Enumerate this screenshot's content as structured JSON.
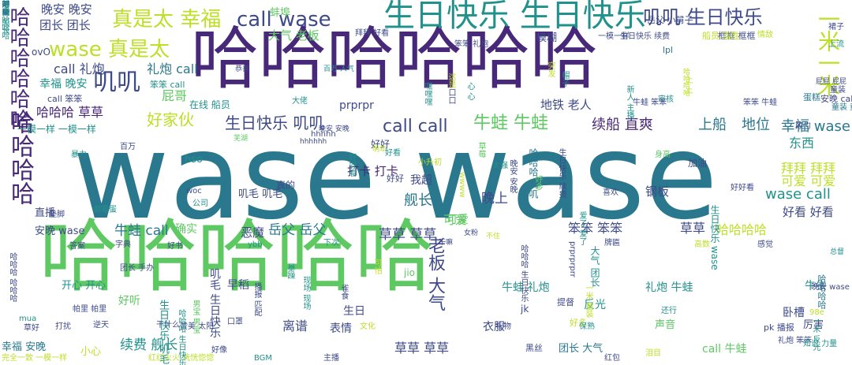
{
  "palette": {
    "purple": "#482878",
    "teal": "#2a788e",
    "green": "#5ec962",
    "yellow": "#bddf26",
    "blue": "#3e4a89",
    "bluegreen": "#21918c"
  },
  "words": [
    {
      "text": "wase wase",
      "color": "#2a788e"
    },
    {
      "text": "哈哈哈哈哈哈",
      "color": "#482878"
    },
    {
      "text": "哈哈哈哈哈",
      "color": "#5ec962"
    },
    {
      "text": "生日快乐 生日快乐",
      "color": "#21918c"
    },
    {
      "text": "哈哈哈哈哈哈",
      "color": "#482878"
    },
    {
      "text": "哈哈哈哈",
      "color": "#482878"
    },
    {
      "text": "一米一米",
      "color": "#bddf26"
    },
    {
      "text": "真是太 幸福",
      "color": "#bddf26"
    },
    {
      "text": "call wase",
      "color": "#3e4a89"
    },
    {
      "text": "叽叽 生日快乐",
      "color": "#3e4a89"
    },
    {
      "text": "wase 真是太",
      "color": "#bddf26"
    },
    {
      "text": "叽叽",
      "color": "#3e4a89"
    },
    {
      "text": "生日快乐 叽叽",
      "color": "#3e4a89"
    },
    {
      "text": "call call",
      "color": "#3e4a89"
    },
    {
      "text": "牛蛙 牛蛙",
      "color": "#5ec962"
    },
    {
      "text": "续船 直爽",
      "color": "#482878"
    },
    {
      "text": "上船",
      "color": "#2a788e"
    },
    {
      "text": "地位",
      "color": "#2a788e"
    },
    {
      "text": "幸福 wase",
      "color": "#2a788e"
    },
    {
      "text": "wase call",
      "color": "#21918c"
    },
    {
      "text": "好家伙",
      "color": "#bddf26"
    },
    {
      "text": "哈哈哈 草草",
      "color": "#482878"
    },
    {
      "text": "晚安 晚安",
      "color": "#3e4a89"
    },
    {
      "text": "团长 团长",
      "color": "#3e4a89"
    },
    {
      "text": "大气 老板",
      "color": "#5ec962"
    },
    {
      "text": "礼炮 call",
      "color": "#2a788e"
    },
    {
      "text": "call 礼炮",
      "color": "#3e4a89"
    },
    {
      "text": "幸福 晚安",
      "color": "#21918c"
    },
    {
      "text": "屁哥",
      "color": "#5ec962"
    },
    {
      "text": "在线 船员",
      "color": "#21918c"
    },
    {
      "text": "prprpr",
      "color": "#3e4a89"
    },
    {
      "text": "地铁 老人",
      "color": "#3e4a89"
    },
    {
      "text": "老板 大气",
      "color": "#3e4a89"
    },
    {
      "text": "草草 草草",
      "color": "#3e4a89"
    },
    {
      "text": "牛蛙 call",
      "color": "#2a788e"
    },
    {
      "text": "岳父 岳父",
      "color": "#2a788e"
    },
    {
      "text": "笨笨 笨笨",
      "color": "#3e4a89"
    },
    {
      "text": "草草",
      "color": "#3e4a89"
    },
    {
      "text": "哈哈哈哈",
      "color": "#bddf26"
    },
    {
      "text": "安晚 wase",
      "color": "#3e4a89"
    },
    {
      "text": "确实",
      "color": "#5ec962"
    },
    {
      "text": "恶魔",
      "color": "#3e4a89"
    },
    {
      "text": "可爱",
      "color": "#5ec962"
    },
    {
      "text": "晚上",
      "color": "#3e4a89"
    },
    {
      "text": "舰长",
      "color": "#2a788e"
    },
    {
      "text": "我超",
      "color": "#3e4a89"
    },
    {
      "text": "打卡 打卡",
      "color": "#482878"
    },
    {
      "text": "叽毛 叽毛",
      "color": "#3e4a89"
    },
    {
      "text": "hso",
      "color": "#21918c"
    },
    {
      "text": "东西",
      "color": "#21918c"
    },
    {
      "text": "拜拜 拜拜",
      "color": "#bddf26"
    },
    {
      "text": "可爱 可爱",
      "color": "#bddf26"
    },
    {
      "text": "好看 好看",
      "color": "#3e4a89"
    },
    {
      "text": "钢板",
      "color": "#3e4a89"
    },
    {
      "text": "直播",
      "color": "#3e4a89"
    },
    {
      "text": "开心 开心",
      "color": "#21918c"
    },
    {
      "text": "早稻",
      "color": "#3e4a89"
    },
    {
      "text": "离谱",
      "color": "#3e4a89"
    },
    {
      "text": "表情",
      "color": "#3e4a89"
    },
    {
      "text": "续费 舰长",
      "color": "#21918c"
    },
    {
      "text": "草草 草草",
      "color": "#3e4a89"
    },
    {
      "text": "衣服",
      "color": "#3e4a89"
    },
    {
      "text": "生日",
      "color": "#3e4a89"
    },
    {
      "text": "生日快乐 叽毛",
      "color": "#21918c"
    },
    {
      "text": "牛蛙 礼炮",
      "color": "#21918c"
    },
    {
      "text": "礼炮 牛蛙",
      "color": "#21918c"
    },
    {
      "text": "反光",
      "color": "#21918c"
    },
    {
      "text": "call 牛蛙",
      "color": "#5ec962"
    },
    {
      "text": "卧槽",
      "color": "#3e4a89"
    },
    {
      "text": "牛牛",
      "color": "#21918c"
    },
    {
      "text": "声音",
      "color": "#5ec962"
    },
    {
      "text": "厉害",
      "color": "#3e4a89"
    },
    {
      "text": "幸福 安晚",
      "color": "#2a788e"
    },
    {
      "text": "好听",
      "color": "#5ec962"
    },
    {
      "text": "团长 大气",
      "color": "#2a788e"
    },
    {
      "text": "小心",
      "color": "#bddf26"
    },
    {
      "text": "可爱",
      "color": "#5ec962"
    },
    {
      "text": "一模一样 一模一样",
      "color": "#21918c"
    },
    {
      "text": "好好",
      "color": "#3e4a89"
    },
    {
      "text": "加油",
      "color": "#3e4a89"
    },
    {
      "text": "框框 框框",
      "color": "#3e4a89"
    },
    {
      "text": "模糊",
      "color": "#3e4a89"
    },
    {
      "text": "船员 连胜",
      "color": "#bddf26"
    },
    {
      "text": "情敌",
      "color": "#bddf26"
    },
    {
      "text": "叽毛 生日快乐",
      "color": "#3e4a89"
    },
    {
      "text": "哈哈哈 叽叽",
      "color": "#2a788e"
    },
    {
      "text": "生日快乐 wase",
      "color": "#21918c"
    },
    {
      "text": "大气 团长",
      "color": "#21918c"
    },
    {
      "text": "蚌埠",
      "color": "#5ec962"
    },
    {
      "text": "ovO",
      "color": "#3e4a89"
    },
    {
      "text": "lpl",
      "color": "#2a788e"
    },
    {
      "text": "笨笨 call",
      "color": "#21918c"
    },
    {
      "text": "call 笨笨",
      "color": "#3e4a89"
    },
    {
      "text": "真的",
      "color": "#3e4a89"
    },
    {
      "text": "好好",
      "color": "#3e4a89"
    },
    {
      "text": "jio",
      "color": "#5ec962"
    },
    {
      "text": "jk",
      "color": "#3e4a89"
    },
    {
      "text": "黑丝",
      "color": "#3e4a89"
    },
    {
      "text": "提督",
      "color": "#3e4a89"
    },
    {
      "text": "好多",
      "color": "#bddf26"
    },
    {
      "text": "pk 播报",
      "color": "#3e4a89"
    },
    {
      "text": "礼炮 笨笨",
      "color": "#3e4a89"
    },
    {
      "text": "知识 力量",
      "color": "#21918c"
    },
    {
      "text": "哈哈哈哈",
      "color": "#2a788e"
    },
    {
      "text": "一米 反光",
      "color": "#21918c"
    },
    {
      "text": "晚安 wase",
      "color": "#3e4a89"
    },
    {
      "text": "拜拜 好看",
      "color": "#3e4a89"
    },
    {
      "text": "生日快乐 续费",
      "color": "#3e4a89"
    },
    {
      "text": "岳父 小舅子",
      "color": "#3e4a89"
    },
    {
      "text": "一模一样",
      "color": "#3e4a89"
    },
    {
      "text": "笨笨 礼炮",
      "color": "#3e4a89"
    },
    {
      "text": "上流",
      "color": "#21918c"
    },
    {
      "text": "裙子",
      "color": "#3e4a89"
    },
    {
      "text": "恭喜",
      "color": "#3e4a89"
    },
    {
      "text": "百万 人气",
      "color": "#21918c"
    },
    {
      "text": "屁屁 屁屁",
      "color": "#3e4a89"
    },
    {
      "text": "哈哈哈哈",
      "color": "#bddf26"
    },
    {
      "text": "安晚 call",
      "color": "#3e4a89"
    },
    {
      "text": "童装",
      "color": "#3e4a89"
    },
    {
      "text": "蛋糕",
      "color": "#2a788e"
    },
    {
      "text": "审核",
      "color": "#21918c"
    },
    {
      "text": "童装 童装",
      "color": "#2a788e"
    },
    {
      "text": "牛蛙 笨笨",
      "color": "#3e4a89"
    },
    {
      "text": "笨笨 牛蛙",
      "color": "#3e4a89"
    },
    {
      "text": "大佬",
      "color": "#21918c"
    },
    {
      "text": "hhhhh",
      "color": "#3e4a89"
    },
    {
      "text": "晚安 安晚",
      "color": "#3e4a89"
    },
    {
      "text": "芜湖",
      "color": "#5ec962"
    },
    {
      "text": "hhhhhh",
      "color": "#3e4a89"
    },
    {
      "text": "明年",
      "color": "#bddf26"
    },
    {
      "text": "好看",
      "color": "#21918c"
    },
    {
      "text": "小升初",
      "color": "#bddf26"
    },
    {
      "text": "暴力",
      "color": "#21918c"
    },
    {
      "text": "百万",
      "color": "#3e4a89"
    },
    {
      "text": "woc",
      "color": "#3e4a89"
    },
    {
      "text": "公司",
      "color": "#21918c"
    },
    {
      "text": "倒霉蛋",
      "color": "#21918c"
    },
    {
      "text": "垫脚",
      "color": "#3e4a89"
    },
    {
      "text": "答案",
      "color": "#3e4a89"
    },
    {
      "text": "字典",
      "color": "#3e4a89"
    },
    {
      "text": "好书",
      "color": "#3e4a89"
    },
    {
      "text": "ybb",
      "color": "#21918c"
    },
    {
      "text": "下次",
      "color": "#21918c"
    },
    {
      "text": "干嘛",
      "color": "#3e4a89"
    },
    {
      "text": "女粉",
      "color": "#3e4a89"
    },
    {
      "text": "不住",
      "color": "#bddf26"
    },
    {
      "text": "牌匾",
      "color": "#3e4a89"
    },
    {
      "text": "高数",
      "color": "#bddf26"
    },
    {
      "text": "感觉",
      "color": "#3e4a89"
    },
    {
      "text": "总督",
      "color": "#21918c"
    },
    {
      "text": "喜欢",
      "color": "#3e4a89"
    },
    {
      "text": "太强",
      "color": "#21918c"
    },
    {
      "text": "身高",
      "color": "#5ec962"
    },
    {
      "text": "好好看",
      "color": "#3e4a89"
    },
    {
      "text": "颠勺",
      "color": "#3e4a89"
    },
    {
      "text": "98e",
      "color": "#bddf26"
    },
    {
      "text": "mua",
      "color": "#21918c"
    },
    {
      "text": "草好",
      "color": "#3e4a89"
    },
    {
      "text": "打扰",
      "color": "#3e4a89"
    },
    {
      "text": "逆天",
      "color": "#3e4a89"
    },
    {
      "text": "干什么",
      "color": "#3e4a89"
    },
    {
      "text": "赞美 太阳",
      "color": "#3e4a89"
    },
    {
      "text": "口罩",
      "color": "#3e4a89"
    },
    {
      "text": "文化",
      "color": "#bddf26"
    },
    {
      "text": "礼物",
      "color": "#3e4a89"
    },
    {
      "text": "保熟",
      "color": "#21918c"
    },
    {
      "text": "还行",
      "color": "#21918c"
    },
    {
      "text": "BGM",
      "color": "#21918c"
    },
    {
      "text": "主播",
      "color": "#3e4a89"
    },
    {
      "text": "好像",
      "color": "#3e4a89"
    },
    {
      "text": "泪目",
      "color": "#bddf26"
    },
    {
      "text": "红包",
      "color": "#3e4a89"
    },
    {
      "text": "红红火火 恍恍惚惚",
      "color": "#bddf26"
    },
    {
      "text": "完全一致 一模一样",
      "color": "#bddf26"
    },
    {
      "text": "帕里 帕里",
      "color": "#3e4a89"
    },
    {
      "text": "团长 手办",
      "color": "#3e4a89"
    },
    {
      "text": "男宝 男宝",
      "color": "#5ec962"
    },
    {
      "text": "雀食",
      "color": "#3e4a89"
    },
    {
      "text": "暴躁",
      "color": "#21918c"
    },
    {
      "text": "现场 现场",
      "color": "#21918c"
    },
    {
      "text": "哈哈哈 生日快乐",
      "color": "#21918c"
    },
    {
      "text": "播报 匹配",
      "color": "#3e4a89"
    },
    {
      "text": "一米 童装",
      "color": "#bddf26"
    },
    {
      "text": "prprprprr",
      "color": "#3e4a89"
    },
    {
      "text": "好多",
      "color": "#5ec962"
    },
    {
      "text": "这是",
      "color": "#bddf26"
    },
    {
      "text": "嘿嘿嘿",
      "color": "#21918c"
    },
    {
      "text": "口口",
      "color": "#3e4a89"
    },
    {
      "text": "草莓",
      "color": "#5ec962"
    },
    {
      "text": "晚安 安晚",
      "color": "#3e4a89"
    },
    {
      "text": "突发",
      "color": "#bddf26"
    },
    {
      "text": "帽子",
      "color": "#21918c"
    },
    {
      "text": "心 心",
      "color": "#21918c"
    },
    {
      "text": "爱了 爱了",
      "color": "#21918c"
    },
    {
      "text": "上 上",
      "color": "#bddf26"
    },
    {
      "text": "好好看",
      "color": "#21918c"
    },
    {
      "text": "wwww",
      "color": "#bddf26"
    },
    {
      "text": "可怕",
      "color": "#bddf26"
    },
    {
      "text": "哈哈哈 生日快乐",
      "color": "#3e4a89"
    },
    {
      "text": "生日快乐 续费",
      "color": "#3e4a89"
    },
    {
      "text": "新人 主播",
      "color": "#21918c"
    },
    {
      "text": "哈哈哈 哈哈哈",
      "color": "#3e4a89"
    },
    {
      "text": "不理",
      "color": "#21918c"
    },
    {
      "text": "好多",
      "color": "#21918c"
    },
    {
      "text": "船长 船长",
      "color": "#21918c"
    },
    {
      "text": "时尚",
      "color": "#3e4a89"
    },
    {
      "text": "哈哈哈哈哈",
      "color": "#21918c"
    }
  ]
}
